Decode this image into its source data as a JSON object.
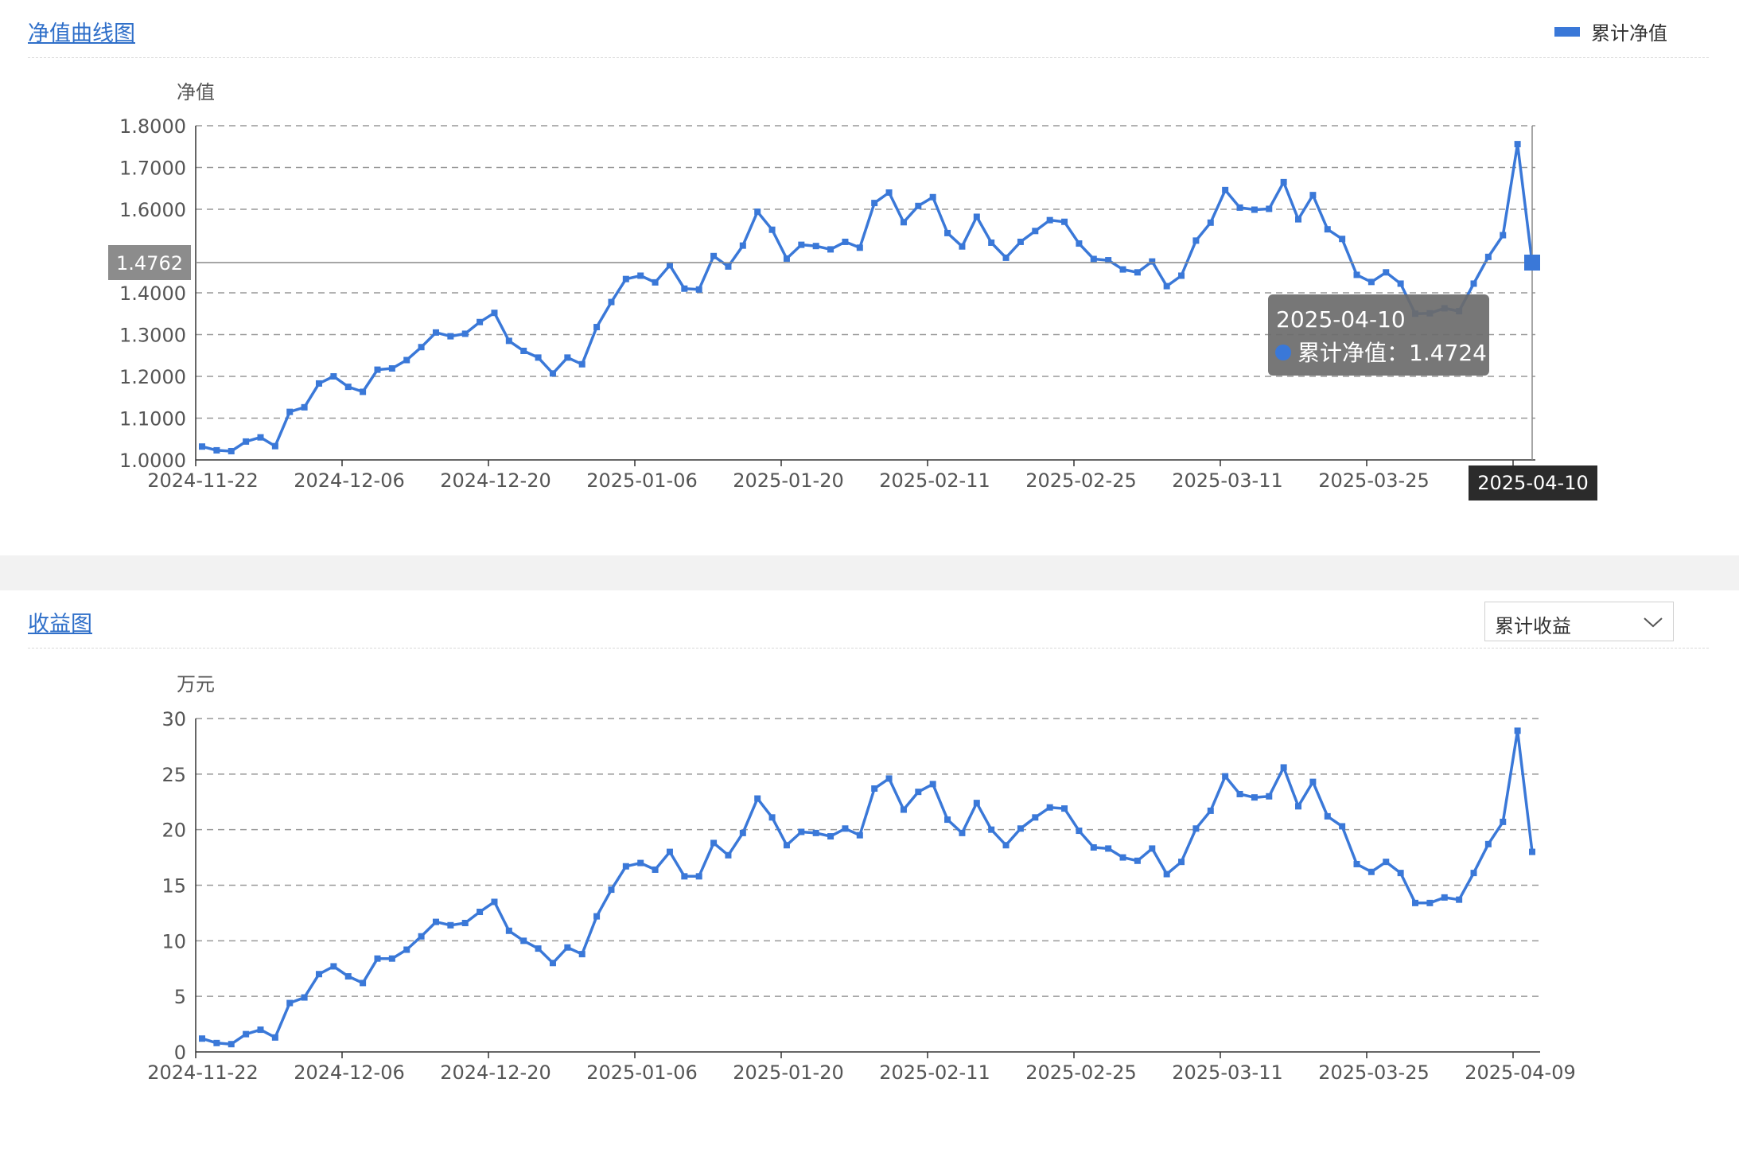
{
  "nav_panel": {
    "title": "净值曲线图",
    "legend_label": "累计净值",
    "y_axis_name": "净值",
    "pointer_y_label": "1.4762",
    "pointer_x_label": "2025-04-10",
    "tooltip": {
      "date": "2025-04-10",
      "series_label": "累计净值",
      "separator": "：",
      "value": "1.4724"
    }
  },
  "income_panel": {
    "title": "收益图",
    "selector_value": "累计收益",
    "y_axis_name": "万元"
  },
  "colors": {
    "series": "#3a78d8",
    "tooltip_bg": "#6b6b6b",
    "pointer_label_bg": "#8c8c8c",
    "x_pointer_label_bg": "#2b2b2b",
    "grid": "#999999"
  },
  "chart_data": [
    {
      "type": "line",
      "name": "nav",
      "title": "",
      "ylabel": "净值",
      "ylim": [
        1.0,
        1.8
      ],
      "yticks": [
        "1.0000",
        "1.1000",
        "1.2000",
        "1.3000",
        "1.4000",
        "1.6000",
        "1.7000",
        "1.8000"
      ],
      "x_tick_labels": [
        "2024-11-22",
        "2024-12-06",
        "2024-12-20",
        "2025-01-06",
        "2025-01-20",
        "2025-02-11",
        "2025-02-25",
        "2025-03-11",
        "2025-03-25"
      ],
      "grid": true,
      "legend_position": "top-right",
      "series": [
        {
          "name": "累计净值",
          "values": [
            1.032,
            1.023,
            1.021,
            1.044,
            1.054,
            1.033,
            1.115,
            1.126,
            1.183,
            1.2,
            1.175,
            1.163,
            1.216,
            1.219,
            1.239,
            1.27,
            1.305,
            1.296,
            1.302,
            1.33,
            1.352,
            1.285,
            1.261,
            1.245,
            1.207,
            1.245,
            1.229,
            1.318,
            1.378,
            1.433,
            1.441,
            1.425,
            1.466,
            1.41,
            1.408,
            1.488,
            1.463,
            1.513,
            1.594,
            1.551,
            1.482,
            1.515,
            1.512,
            1.504,
            1.522,
            1.508,
            1.615,
            1.64,
            1.569,
            1.608,
            1.629,
            1.543,
            1.511,
            1.582,
            1.52,
            1.484,
            1.522,
            1.548,
            1.574,
            1.57,
            1.518,
            1.481,
            1.478,
            1.456,
            1.449,
            1.475,
            1.416,
            1.441,
            1.525,
            1.568,
            1.646,
            1.604,
            1.599,
            1.601,
            1.665,
            1.576,
            1.634,
            1.552,
            1.529,
            1.443,
            1.426,
            1.449,
            1.422,
            1.35,
            1.351,
            1.363,
            1.356,
            1.422,
            1.486,
            1.538,
            1.756,
            1.4724
          ]
        }
      ]
    },
    {
      "type": "line",
      "name": "income",
      "title": "",
      "ylabel": "万元",
      "ylim": [
        0,
        30
      ],
      "yticks": [
        "0",
        "5",
        "10",
        "15",
        "20",
        "25",
        "30"
      ],
      "x_tick_labels": [
        "2024-11-22",
        "2024-12-06",
        "2024-12-20",
        "2025-01-06",
        "2025-01-20",
        "2025-02-11",
        "2025-02-25",
        "2025-03-11",
        "2025-03-25",
        "2025-04-09"
      ],
      "grid": true,
      "series": [
        {
          "name": "累计收益",
          "values": [
            1.2,
            0.8,
            0.7,
            1.6,
            2.0,
            1.3,
            4.4,
            4.9,
            7.0,
            7.7,
            6.8,
            6.2,
            8.4,
            8.4,
            9.2,
            10.4,
            11.7,
            11.4,
            11.6,
            12.6,
            13.5,
            10.9,
            10.0,
            9.3,
            8.0,
            9.4,
            8.8,
            12.2,
            14.6,
            16.7,
            17.0,
            16.4,
            18.0,
            15.8,
            15.8,
            18.8,
            17.7,
            19.7,
            22.8,
            21.1,
            18.6,
            19.8,
            19.7,
            19.4,
            20.1,
            19.5,
            23.7,
            24.6,
            21.8,
            23.4,
            24.1,
            20.9,
            19.7,
            22.4,
            20.0,
            18.6,
            20.1,
            21.1,
            22.0,
            21.9,
            19.9,
            18.4,
            18.3,
            17.5,
            17.2,
            18.3,
            16.0,
            17.1,
            20.1,
            21.7,
            24.8,
            23.2,
            22.9,
            23.0,
            25.6,
            22.1,
            24.3,
            21.2,
            20.3,
            16.9,
            16.2,
            17.1,
            16.1,
            13.4,
            13.4,
            13.9,
            13.7,
            16.1,
            18.7,
            20.7,
            28.9,
            18.0
          ]
        }
      ]
    }
  ]
}
